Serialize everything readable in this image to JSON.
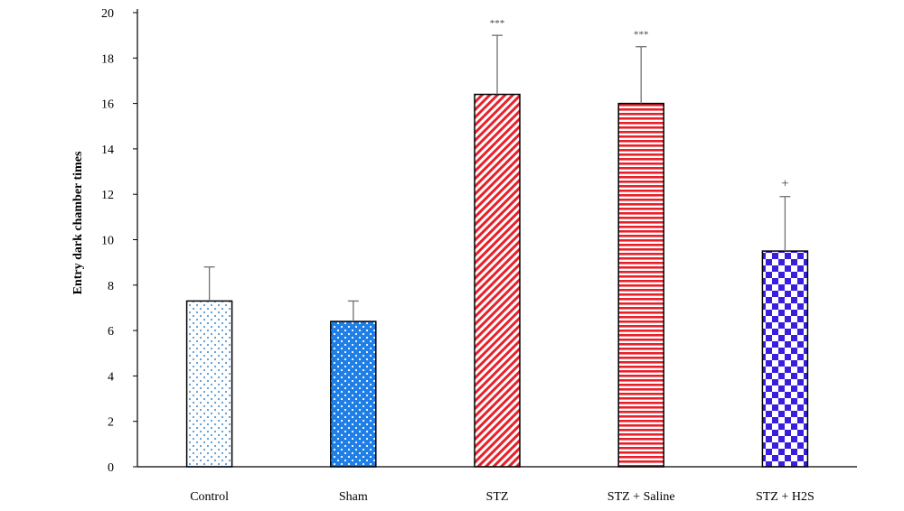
{
  "chart_data": {
    "type": "bar",
    "title": "",
    "xlabel": "",
    "ylabel": "Entry dark chamber times",
    "ylim": [
      0,
      20
    ],
    "yticks": [
      0,
      2,
      4,
      6,
      8,
      10,
      12,
      14,
      16,
      18,
      20
    ],
    "grid": false,
    "legend": "none",
    "categories": [
      "Control",
      "Sham",
      "STZ",
      "STZ + Saline",
      "STZ + H2S"
    ],
    "values": [
      7.3,
      6.4,
      16.4,
      16.0,
      9.5
    ],
    "error_upper": [
      1.5,
      0.9,
      2.6,
      2.5,
      2.4
    ],
    "annotations": [
      "",
      "",
      "***",
      "***",
      "+"
    ],
    "patterns": [
      "light-blue-dots",
      "white-dots-on-blue",
      "red-diagonal-stripes",
      "red-horizontal-stripes",
      "blue-checkerboard"
    ],
    "colors": {
      "light_blue": "#5b9bd5",
      "blue": "#1f7fe6",
      "red": "#e8202a",
      "checker": "#3a1ee0",
      "error_bar": "#707070"
    }
  }
}
